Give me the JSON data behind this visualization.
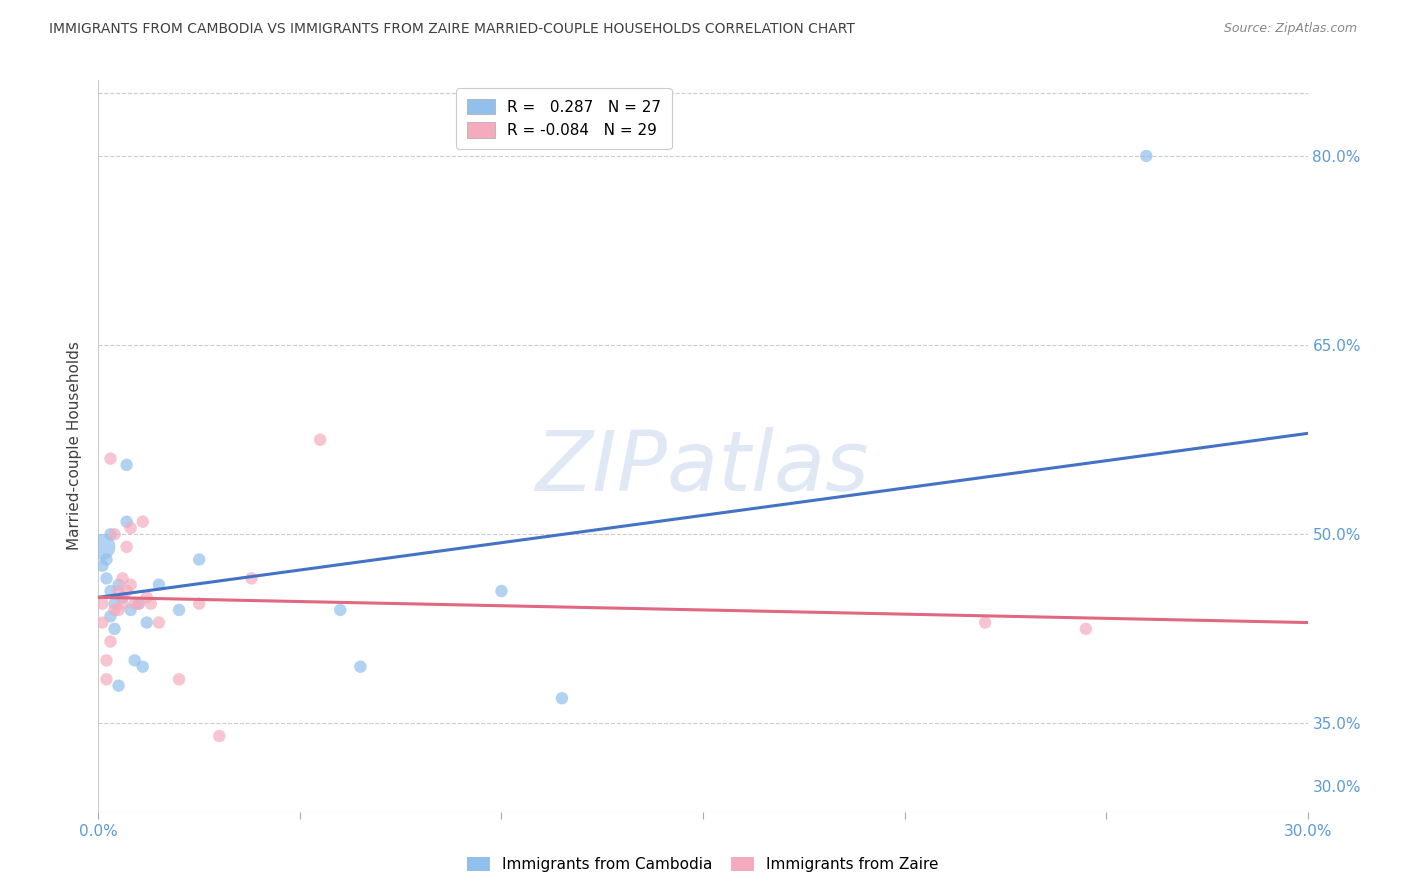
{
  "title": "IMMIGRANTS FROM CAMBODIA VS IMMIGRANTS FROM ZAIRE MARRIED-COUPLE HOUSEHOLDS CORRELATION CHART",
  "source": "Source: ZipAtlas.com",
  "ylabel": "Married-couple Households",
  "xlim": [
    0.0,
    0.3
  ],
  "ylim": [
    0.28,
    0.86
  ],
  "ytick_vals": [
    0.3,
    0.35,
    0.4,
    0.45,
    0.5,
    0.55,
    0.6,
    0.65,
    0.7,
    0.75,
    0.8,
    0.85
  ],
  "ytick_labels_right": [
    "30.0%",
    "35.0%",
    "",
    "",
    "50.0%",
    "",
    "",
    "65.0%",
    "",
    "",
    "80.0%",
    ""
  ],
  "xtick_positions": [
    0.0,
    0.05,
    0.1,
    0.15,
    0.2,
    0.25,
    0.3
  ],
  "xtick_labels": [
    "0.0%",
    "",
    "",
    "",
    "",
    "",
    "30.0%"
  ],
  "watermark": "ZIPatlas",
  "color_cambodia": "#92C0EC",
  "color_zaire": "#F4ABBE",
  "line_color_cambodia": "#4472C4",
  "line_color_zaire": "#E06880",
  "background_color": "#FFFFFF",
  "grid_color": "#CCCCCC",
  "tick_label_color": "#5B9BD5",
  "title_color": "#404040",
  "ylabel_color": "#404040",
  "cambodia_x": [
    0.001,
    0.001,
    0.002,
    0.002,
    0.003,
    0.003,
    0.003,
    0.004,
    0.004,
    0.005,
    0.005,
    0.006,
    0.007,
    0.007,
    0.008,
    0.009,
    0.01,
    0.011,
    0.012,
    0.015,
    0.02,
    0.025,
    0.06,
    0.065,
    0.1,
    0.115,
    0.26
  ],
  "cambodia_y": [
    0.49,
    0.475,
    0.465,
    0.48,
    0.435,
    0.455,
    0.5,
    0.445,
    0.425,
    0.46,
    0.38,
    0.45,
    0.51,
    0.555,
    0.44,
    0.4,
    0.445,
    0.395,
    0.43,
    0.46,
    0.44,
    0.48,
    0.44,
    0.395,
    0.455,
    0.37,
    0.8
  ],
  "cambodia_sizes": [
    350,
    80,
    80,
    80,
    80,
    80,
    80,
    80,
    80,
    80,
    80,
    80,
    80,
    80,
    80,
    80,
    80,
    80,
    80,
    80,
    80,
    80,
    80,
    80,
    80,
    80,
    80
  ],
  "zaire_x": [
    0.001,
    0.001,
    0.002,
    0.002,
    0.003,
    0.003,
    0.004,
    0.004,
    0.005,
    0.005,
    0.006,
    0.006,
    0.007,
    0.007,
    0.008,
    0.008,
    0.009,
    0.01,
    0.011,
    0.012,
    0.013,
    0.015,
    0.02,
    0.025,
    0.03,
    0.038,
    0.055,
    0.22,
    0.245
  ],
  "zaire_y": [
    0.445,
    0.43,
    0.385,
    0.4,
    0.415,
    0.56,
    0.5,
    0.44,
    0.455,
    0.44,
    0.465,
    0.445,
    0.49,
    0.455,
    0.505,
    0.46,
    0.445,
    0.445,
    0.51,
    0.45,
    0.445,
    0.43,
    0.385,
    0.445,
    0.34,
    0.465,
    0.575,
    0.43,
    0.425
  ],
  "zaire_sizes": [
    80,
    80,
    80,
    80,
    80,
    80,
    80,
    80,
    80,
    80,
    80,
    80,
    80,
    80,
    80,
    80,
    80,
    80,
    80,
    80,
    80,
    80,
    80,
    80,
    80,
    80,
    80,
    80,
    80
  ],
  "legend_labels": [
    "R =   0.287   N = 27",
    "R = -0.084   N = 29"
  ],
  "bottom_legend_labels": [
    "Immigrants from Cambodia",
    "Immigrants from Zaire"
  ]
}
